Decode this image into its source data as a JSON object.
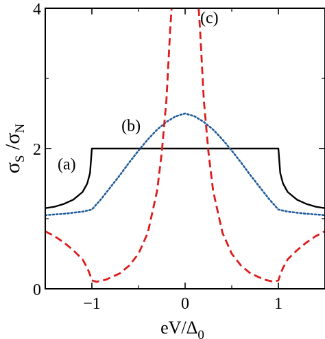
{
  "chart_data": {
    "type": "line",
    "xlabel": {
      "main": "eV/Δ",
      "sub": "0"
    },
    "ylabel": {
      "s1": "σ",
      "sub1": "S",
      "sep": " /",
      "s2": "σ",
      "sub2": "N"
    },
    "xlim": [
      -1.5,
      1.5
    ],
    "ylim": [
      0,
      4
    ],
    "x_ticks": [
      -1,
      0,
      1
    ],
    "y_ticks": [
      0,
      2,
      4
    ],
    "x_tick_labels": [
      "−1",
      "0",
      "1"
    ],
    "y_tick_labels": [
      "0",
      "2",
      "4"
    ],
    "grid": false,
    "legend": "none",
    "annotations": [
      {
        "text": "(a)",
        "x": -1.27,
        "y": 1.78
      },
      {
        "text": "(b)",
        "x": -0.58,
        "y": 2.33
      },
      {
        "text": "(c)",
        "x": 0.26,
        "y": 3.87
      }
    ],
    "series": [
      {
        "id": "a",
        "color": "#000000",
        "dash": "solid",
        "points": [
          [
            -1.5,
            1.15
          ],
          [
            -1.4,
            1.17
          ],
          [
            -1.3,
            1.21
          ],
          [
            -1.2,
            1.27
          ],
          [
            -1.1,
            1.38
          ],
          [
            -1.05,
            1.5
          ],
          [
            -1.02,
            1.65
          ],
          [
            -1.0,
            2.0
          ],
          [
            1.0,
            2.0
          ],
          [
            1.02,
            1.65
          ],
          [
            1.05,
            1.5
          ],
          [
            1.1,
            1.38
          ],
          [
            1.2,
            1.27
          ],
          [
            1.3,
            1.21
          ],
          [
            1.4,
            1.17
          ],
          [
            1.5,
            1.15
          ]
        ]
      },
      {
        "id": "b",
        "color": "#1f5a9a",
        "dash": "dotted",
        "points": [
          [
            -1.5,
            1.05
          ],
          [
            -1.3,
            1.07
          ],
          [
            -1.1,
            1.1
          ],
          [
            -1.0,
            1.13
          ],
          [
            -0.9,
            1.28
          ],
          [
            -0.8,
            1.45
          ],
          [
            -0.7,
            1.62
          ],
          [
            -0.6,
            1.8
          ],
          [
            -0.5,
            1.97
          ],
          [
            -0.4,
            2.13
          ],
          [
            -0.3,
            2.27
          ],
          [
            -0.2,
            2.38
          ],
          [
            -0.1,
            2.46
          ],
          [
            0.0,
            2.5
          ],
          [
            0.1,
            2.46
          ],
          [
            0.2,
            2.38
          ],
          [
            0.3,
            2.27
          ],
          [
            0.4,
            2.13
          ],
          [
            0.5,
            1.97
          ],
          [
            0.6,
            1.8
          ],
          [
            0.7,
            1.62
          ],
          [
            0.8,
            1.45
          ],
          [
            0.9,
            1.28
          ],
          [
            1.0,
            1.13
          ],
          [
            1.1,
            1.1
          ],
          [
            1.3,
            1.07
          ],
          [
            1.5,
            1.05
          ]
        ]
      },
      {
        "id": "c",
        "color": "#dd1c1c",
        "dash": "dashed",
        "points": [
          [
            -1.5,
            0.82
          ],
          [
            -1.4,
            0.75
          ],
          [
            -1.3,
            0.66
          ],
          [
            -1.2,
            0.55
          ],
          [
            -1.1,
            0.42
          ],
          [
            -1.05,
            0.3
          ],
          [
            -1.02,
            0.2
          ],
          [
            -1.0,
            0.12
          ],
          [
            -0.95,
            0.1
          ],
          [
            -0.85,
            0.13
          ],
          [
            -0.7,
            0.22
          ],
          [
            -0.6,
            0.33
          ],
          [
            -0.5,
            0.5
          ],
          [
            -0.4,
            0.8
          ],
          [
            -0.3,
            1.4
          ],
          [
            -0.25,
            1.95
          ],
          [
            -0.2,
            2.7
          ],
          [
            -0.18,
            3.2
          ],
          [
            -0.16,
            3.7
          ],
          [
            -0.145,
            4.0
          ]
        ]
      },
      {
        "id": "c",
        "color": "#dd1c1c",
        "dash": "dashed",
        "points": [
          [
            0.145,
            4.0
          ],
          [
            0.16,
            3.7
          ],
          [
            0.18,
            3.2
          ],
          [
            0.2,
            2.7
          ],
          [
            0.25,
            1.95
          ],
          [
            0.3,
            1.4
          ],
          [
            0.4,
            0.8
          ],
          [
            0.5,
            0.5
          ],
          [
            0.6,
            0.33
          ],
          [
            0.7,
            0.22
          ],
          [
            0.85,
            0.13
          ],
          [
            0.95,
            0.1
          ],
          [
            1.0,
            0.12
          ],
          [
            1.02,
            0.2
          ],
          [
            1.05,
            0.3
          ],
          [
            1.1,
            0.42
          ],
          [
            1.2,
            0.55
          ],
          [
            1.3,
            0.66
          ],
          [
            1.4,
            0.75
          ],
          [
            1.5,
            0.82
          ]
        ]
      }
    ]
  }
}
